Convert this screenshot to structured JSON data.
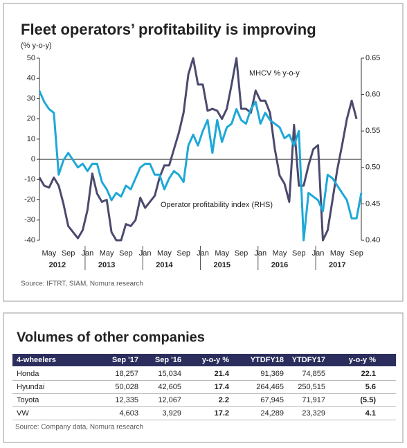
{
  "chart_data": {
    "type": "line",
    "title": "Fleet operators’ profitability is improving",
    "y_label": "(% y-o-y)",
    "source": "Source: IFTRT, SIAM, Nomura research",
    "categories": [
      null,
      null,
      "May",
      null,
      null,
      null,
      "Sep",
      null,
      null,
      null,
      "Jan",
      null,
      null,
      null,
      "May",
      null,
      null,
      null,
      "Sep",
      null,
      null,
      null,
      "Jan",
      null,
      null,
      null,
      "May",
      null,
      null,
      null,
      "Sep",
      null,
      null,
      null,
      "Jan",
      null,
      null,
      null,
      "May",
      null,
      null,
      null,
      "Sep",
      null,
      null,
      null,
      "Jan",
      null,
      null,
      null,
      "May",
      null,
      null,
      null,
      "Sep",
      null,
      null,
      null,
      "Jan",
      null,
      null,
      null,
      "May",
      null,
      null,
      null,
      "Sep",
      null
    ],
    "x_groups": [
      "2012",
      "2013",
      "2014",
      "2015",
      "2016",
      "2017"
    ],
    "ylim": [
      -40,
      50
    ],
    "yticks": [
      -40,
      -30,
      -20,
      -10,
      0,
      10,
      20,
      30,
      40,
      50
    ],
    "y2lim": [
      0.4,
      0.65
    ],
    "y2ticks": [
      {
        "value": 0.4,
        "label": "0.40"
      },
      0.45,
      {
        "value": 0.5,
        "label": "0.50"
      },
      0.55,
      {
        "value": 0.6,
        "label": "0.60"
      },
      0.65
    ],
    "series": [
      {
        "name": "MHCV % y-o-y",
        "color": "#4b4a6e",
        "axis": "y",
        "values": [
          -9,
          -13,
          -14,
          -9,
          -13,
          -22,
          -33,
          -36,
          -39,
          -35,
          -25,
          -7,
          -17,
          -21,
          -20,
          -36,
          -40,
          -40,
          -32,
          -33,
          -30,
          -19,
          -24,
          -21,
          -18,
          -9,
          -3,
          -3,
          5,
          13,
          23,
          42,
          50,
          37,
          37,
          24,
          25,
          24,
          20,
          25,
          37,
          50,
          25,
          25,
          23,
          34,
          29,
          29,
          23,
          5,
          -8,
          -12,
          -21,
          17,
          -13,
          -13,
          -3,
          5,
          7,
          -40,
          -35,
          -20,
          -5,
          7,
          20,
          29,
          20,
          null
        ]
      },
      {
        "name": "Operator profitability index (RHS)",
        "color": "#1ea8d8",
        "axis": "y2",
        "values": [
          0.605,
          0.59,
          0.58,
          0.575,
          0.49,
          0.51,
          0.52,
          0.51,
          0.5,
          0.505,
          0.495,
          0.505,
          0.505,
          0.48,
          0.47,
          0.455,
          0.465,
          0.46,
          0.475,
          0.47,
          0.485,
          0.5,
          0.505,
          0.505,
          0.49,
          0.49,
          0.47,
          0.485,
          0.495,
          0.49,
          0.48,
          0.53,
          0.545,
          0.53,
          0.55,
          0.565,
          0.52,
          0.565,
          0.535,
          0.555,
          0.56,
          0.58,
          0.565,
          0.56,
          0.58,
          0.59,
          0.56,
          0.575,
          0.565,
          0.56,
          0.555,
          0.54,
          0.545,
          0.53,
          0.55,
          0.4,
          0.465,
          0.46,
          0.455,
          0.44,
          0.49,
          0.485,
          0.475,
          0.465,
          0.455,
          0.43,
          0.43,
          0.465
        ]
      }
    ]
  },
  "table": {
    "title": "Volumes of other companies",
    "header": [
      "4-wheelers",
      "Sep '17",
      "Sep '16",
      "y-o-y %",
      "YTDFY18",
      "YTDFY17",
      "y-o-y %"
    ],
    "rows": [
      [
        "Honda",
        "18,257",
        "15,034",
        "21.4",
        "91,369",
        "74,855",
        "22.1"
      ],
      [
        "Hyundai",
        "50,028",
        "42,605",
        "17.4",
        "264,465",
        "250,515",
        "5.6"
      ],
      [
        "Toyota",
        "12,335",
        "12,067",
        "2.2",
        "67,945",
        "71,917",
        "(5.5)"
      ],
      [
        "VW",
        "4,603",
        "3,929",
        "17.2",
        "24,289",
        "23,329",
        "4.1"
      ]
    ],
    "source": "Source: Company data, Nomura research"
  }
}
